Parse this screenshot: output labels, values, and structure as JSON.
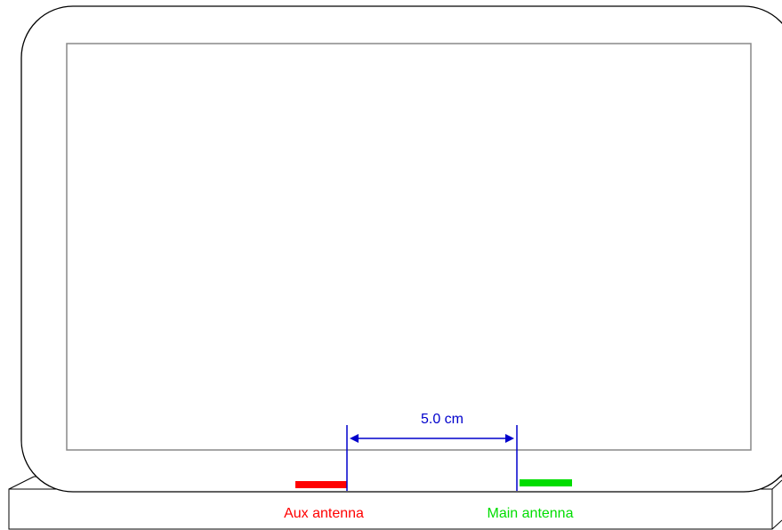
{
  "diagram": {
    "measurement_label": "5.0 cm",
    "antennas": {
      "aux": {
        "label": "Aux antenna",
        "color": "#ff0000"
      },
      "main": {
        "label": "Main antenna",
        "color": "#00dd00"
      }
    },
    "dimension_color": "#0000cc",
    "outline_color": "#000000",
    "screen_border_color": "#888888"
  }
}
